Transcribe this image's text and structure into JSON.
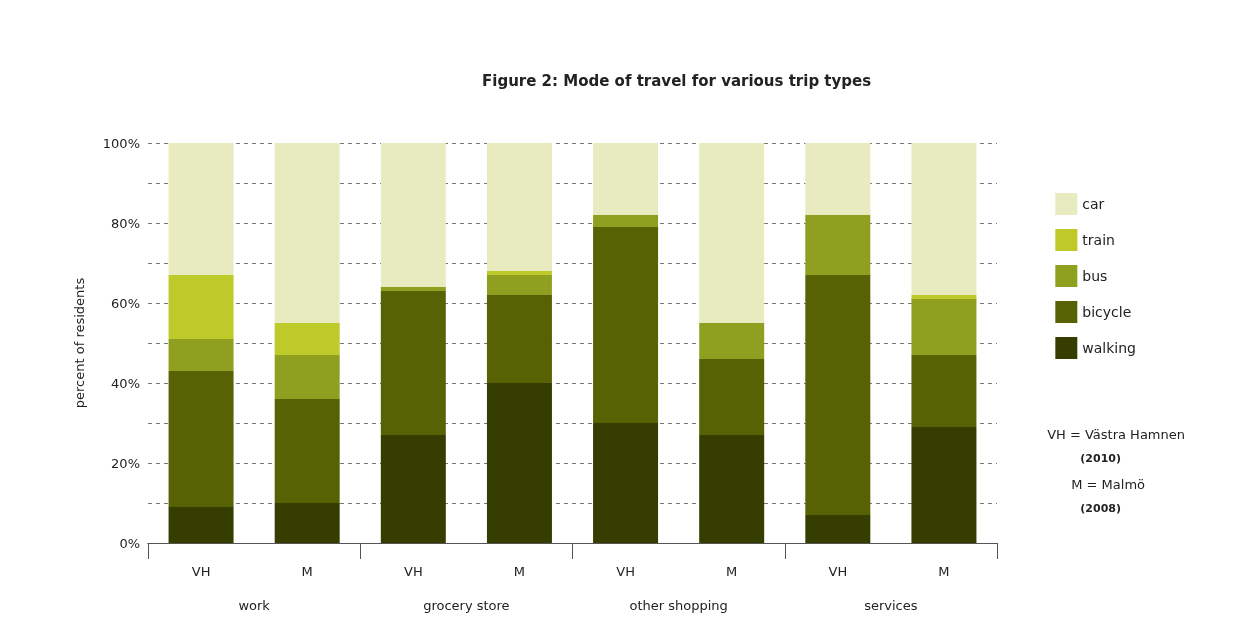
{
  "chart_data": {
    "type": "bar",
    "title": "Figure 2: Mode of travel for various trip types",
    "ylabel": "percent of residents",
    "categories": [
      "VH",
      "M",
      "VH",
      "M",
      "VH",
      "M",
      "VH",
      "M"
    ],
    "stacked": true,
    "grid": "y",
    "legend": "right",
    "ylim": [
      0,
      100
    ],
    "yticks": [
      {
        "value": 0,
        "label": "0%"
      },
      {
        "value": 10,
        "label": null
      },
      {
        "value": 20,
        "label": "20%"
      },
      {
        "value": 30,
        "label": null
      },
      {
        "value": 40,
        "label": "40%"
      },
      {
        "value": 50,
        "label": null
      },
      {
        "value": 60,
        "label": "60%"
      },
      {
        "value": 70,
        "label": null
      },
      {
        "value": 80,
        "label": "80%"
      },
      {
        "value": 90,
        "label": null
      },
      {
        "value": 100,
        "label": "100%"
      }
    ],
    "series": [
      {
        "name": "walking",
        "color": "#353d00",
        "values": [
          9,
          10,
          27,
          40,
          30,
          27,
          7,
          29
        ]
      },
      {
        "name": "bicycle",
        "color": "#576205",
        "values": [
          34,
          26,
          36,
          22,
          49,
          19,
          60,
          18
        ]
      },
      {
        "name": "bus",
        "color": "#8fa020",
        "values": [
          8,
          11,
          1,
          5,
          3,
          9,
          15,
          14
        ]
      },
      {
        "name": "train",
        "color": "#bdca29",
        "values": [
          16,
          8,
          0,
          1,
          0,
          0,
          0,
          1
        ]
      },
      {
        "name": "car",
        "color": "#e8ebc0",
        "values": [
          33,
          45,
          36,
          32,
          18,
          45,
          18,
          38
        ]
      }
    ],
    "annotations": [
      "work",
      "grocery store",
      "other shopping",
      "services",
      "VH = Västra Hamnen",
      "(2010)",
      "M = Malmö",
      "(2008)"
    ]
  }
}
